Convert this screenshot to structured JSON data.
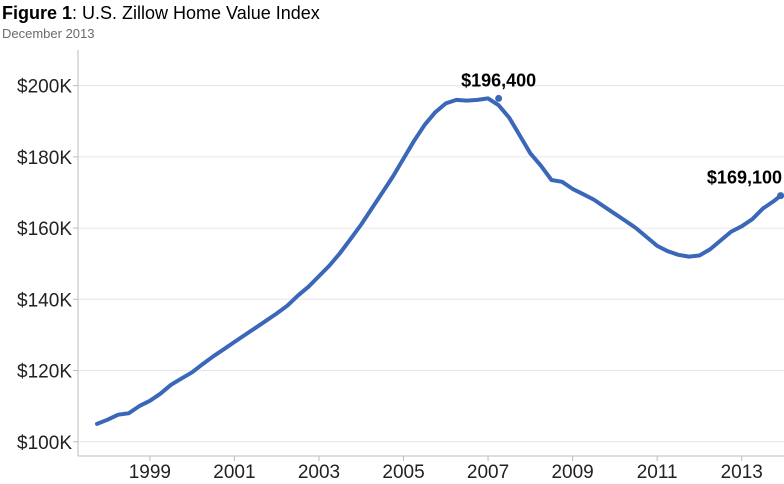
{
  "header": {
    "figure_label": "Figure 1",
    "title_rest": ": U.S. Zillow Home Value Index",
    "subtitle": "December 2013"
  },
  "chart_data": {
    "type": "line",
    "title": "Figure 1: U.S. Zillow Home Value Index",
    "subtitle": "December 2013",
    "xlabel": "",
    "ylabel": "",
    "xlim": [
      1997.3,
      2014.0
    ],
    "ylim": [
      96000,
      210000
    ],
    "x_ticks": [
      1999,
      2001,
      2003,
      2005,
      2007,
      2009,
      2011,
      2013
    ],
    "y_ticks": [
      100000,
      120000,
      140000,
      160000,
      180000,
      200000
    ],
    "y_tick_labels": [
      "$100K",
      "$120K",
      "$140K",
      "$160K",
      "$180K",
      "$200K"
    ],
    "grid": "horizontal",
    "line_color": "#3b67b8",
    "series": [
      {
        "x": [
          1997.75,
          1998.0,
          1998.25,
          1998.5,
          1998.75,
          1999.0,
          1999.25,
          1999.5,
          1999.75,
          2000.0,
          2000.25,
          2000.5,
          2000.75,
          2001.0,
          2001.25,
          2001.5,
          2001.75,
          2002.0,
          2002.25,
          2002.5,
          2002.75,
          2003.0,
          2003.25,
          2003.5,
          2003.75,
          2004.0,
          2004.25,
          2004.5,
          2004.75,
          2005.0,
          2005.25,
          2005.5,
          2005.75,
          2006.0,
          2006.25,
          2006.5,
          2006.75,
          2007.0,
          2007.25,
          2007.5,
          2007.75,
          2008.0,
          2008.25,
          2008.5,
          2008.75,
          2009.0,
          2009.25,
          2009.5,
          2009.75,
          2010.0,
          2010.25,
          2010.5,
          2010.75,
          2011.0,
          2011.25,
          2011.5,
          2011.75,
          2012.0,
          2012.25,
          2012.5,
          2012.75,
          2013.0,
          2013.25,
          2013.5,
          2013.75,
          2013.92
        ],
        "values": [
          105000,
          106200,
          107600,
          108000,
          110000,
          111500,
          113500,
          116000,
          117800,
          119500,
          121800,
          124000,
          126000,
          128000,
          130000,
          132000,
          134000,
          136000,
          138200,
          141000,
          143500,
          146500,
          149500,
          153000,
          157000,
          161000,
          165500,
          170000,
          174500,
          179500,
          184500,
          189000,
          192500,
          195000,
          196000,
          195800,
          196000,
          196400,
          194500,
          191000,
          186000,
          181000,
          177500,
          173500,
          173000,
          171000,
          169500,
          168000,
          166000,
          164000,
          162000,
          160000,
          157500,
          155000,
          153500,
          152500,
          152000,
          152300,
          154000,
          156500,
          159000,
          160500,
          162500,
          165500,
          167500,
          169100
        ]
      }
    ],
    "annotations": [
      {
        "x": 2007.25,
        "y": 196400,
        "label": "$196,400"
      },
      {
        "x": 2013.92,
        "y": 169100,
        "label": "$169,100"
      }
    ]
  }
}
